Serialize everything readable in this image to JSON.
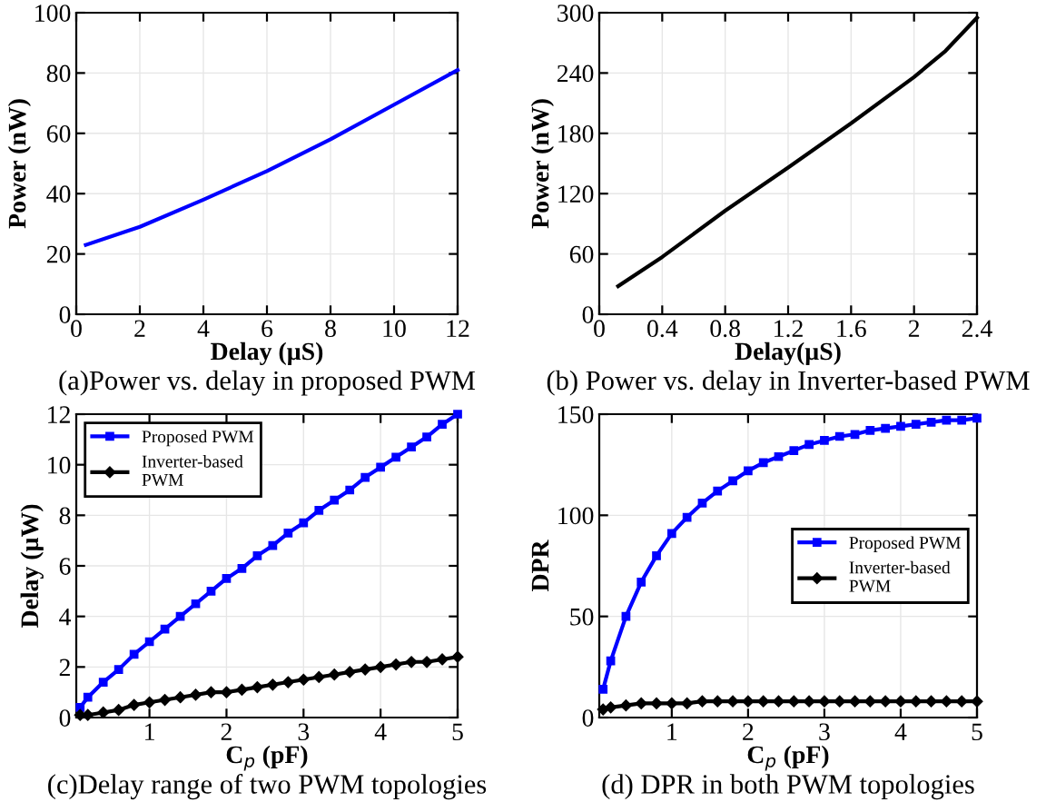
{
  "chart_data": [
    {
      "type": "line",
      "title": "(a)Power vs. delay in proposed PWM",
      "xlabel": "Delay (µS)",
      "ylabel": "Power (nW)",
      "xlim": [
        0,
        12
      ],
      "ylim": [
        0,
        100
      ],
      "xticks": [
        0,
        2,
        4,
        6,
        8,
        10,
        12
      ],
      "yticks": [
        0,
        20,
        40,
        60,
        80,
        100
      ],
      "grid": true,
      "series": [
        {
          "color": "#0000ff",
          "x": [
            0.3,
            2,
            4,
            6,
            8,
            10,
            12
          ],
          "values": [
            23,
            29,
            38,
            47.5,
            58,
            69.5,
            81
          ]
        }
      ]
    },
    {
      "type": "line",
      "title": "(b) Power vs. delay in Inverter-based PWM",
      "xlabel": "Delay(µS)",
      "ylabel": "Power (nW)",
      "xlim": [
        0,
        2.4
      ],
      "ylim": [
        0,
        300
      ],
      "xticks": [
        0,
        0.4,
        0.8,
        1.2,
        1.6,
        2,
        2.4
      ],
      "yticks": [
        0,
        60,
        120,
        180,
        240,
        300
      ],
      "grid": true,
      "series": [
        {
          "color": "#000000",
          "x": [
            0.12,
            0.4,
            0.8,
            1.2,
            1.6,
            2.0,
            2.2,
            2.4
          ],
          "values": [
            28,
            57,
            103,
            146,
            190,
            236,
            262,
            295
          ]
        }
      ]
    },
    {
      "type": "line",
      "title": "(c)Delay range of two PWM topologies",
      "xlabel": "C$_{p}$ (pF)",
      "ylabel": "Delay (µW)",
      "xlim": [
        0.05,
        5
      ],
      "ylim": [
        0,
        12
      ],
      "xticks": [
        1,
        2,
        3,
        4,
        5
      ],
      "yticks": [
        0,
        2,
        4,
        6,
        8,
        10,
        12
      ],
      "grid": true,
      "legend": "top left",
      "x": [
        0.1,
        0.2,
        0.4,
        0.6,
        0.8,
        1.0,
        1.2,
        1.4,
        1.6,
        1.8,
        2.0,
        2.2,
        2.4,
        2.6,
        2.8,
        3.0,
        3.2,
        3.4,
        3.6,
        3.8,
        4.0,
        4.2,
        4.4,
        4.6,
        4.8,
        5.0
      ],
      "series": [
        {
          "name": "Proposed PWM",
          "color": "#0000ff",
          "marker": "square",
          "values": [
            0.4,
            0.8,
            1.4,
            1.9,
            2.5,
            3.0,
            3.5,
            4.0,
            4.5,
            5.0,
            5.5,
            5.9,
            6.4,
            6.8,
            7.3,
            7.7,
            8.2,
            8.6,
            9.0,
            9.5,
            9.9,
            10.3,
            10.7,
            11.1,
            11.6,
            12.0
          ]
        },
        {
          "name": "Inverter-based\nPWM",
          "color": "#000000",
          "marker": "diamond",
          "values": [
            0.1,
            0.1,
            0.2,
            0.3,
            0.5,
            0.6,
            0.7,
            0.8,
            0.9,
            1.0,
            1.0,
            1.1,
            1.2,
            1.3,
            1.4,
            1.5,
            1.6,
            1.7,
            1.8,
            1.9,
            2.0,
            2.1,
            2.2,
            2.2,
            2.3,
            2.4
          ]
        }
      ]
    },
    {
      "type": "line",
      "title": "(d) DPR in both PWM topologies",
      "xlabel": "C$_{p}$ (pF)",
      "ylabel": "DPR",
      "xlim": [
        0.05,
        5
      ],
      "ylim": [
        0,
        150
      ],
      "xticks": [
        1,
        2,
        3,
        4,
        5
      ],
      "yticks": [
        0,
        50,
        100,
        150
      ],
      "grid": true,
      "legend": "right",
      "x": [
        0.1,
        0.2,
        0.4,
        0.6,
        0.8,
        1.0,
        1.2,
        1.4,
        1.6,
        1.8,
        2.0,
        2.2,
        2.4,
        2.6,
        2.8,
        3.0,
        3.2,
        3.4,
        3.6,
        3.8,
        4.0,
        4.2,
        4.4,
        4.6,
        4.8,
        5.0
      ],
      "series": [
        {
          "name": "Proposed PWM",
          "color": "#0000ff",
          "marker": "square",
          "values": [
            14,
            28,
            50,
            67,
            80,
            91,
            99,
            106,
            112,
            117,
            122,
            126,
            129,
            132,
            135,
            137,
            139,
            140,
            142,
            143,
            144,
            145,
            146,
            147,
            147,
            148
          ]
        },
        {
          "name": "Inverter-based\nPWM",
          "color": "#000000",
          "marker": "diamond",
          "values": [
            4,
            5,
            6,
            7,
            7,
            7,
            7,
            8,
            8,
            8,
            8,
            8,
            8,
            8,
            8,
            8,
            8,
            8,
            8,
            8,
            8,
            8,
            8,
            8,
            8,
            8
          ]
        }
      ]
    }
  ]
}
